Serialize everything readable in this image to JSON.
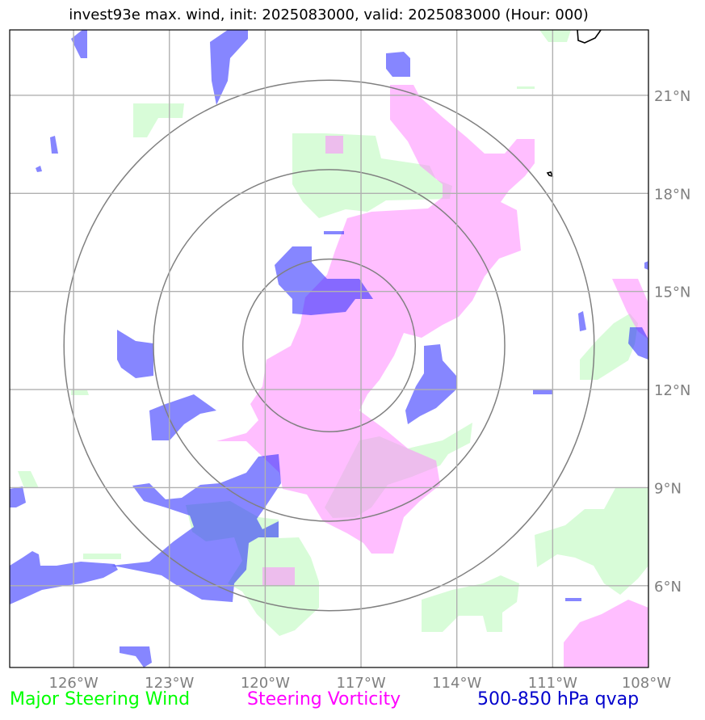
{
  "title": "invest93e max. wind, init: 2025083000, valid: 2025083000 (Hour: 000)",
  "map": {
    "lon_range": [
      -128,
      -108
    ],
    "lat_range": [
      3.5,
      23.0
    ],
    "center": {
      "lon": -118.0,
      "lat": 13.35
    },
    "range_rings_deg": [
      2.7,
      5.5,
      8.3
    ],
    "grid_lons": [
      -126,
      -123,
      -120,
      -117,
      -114,
      -111,
      -108
    ],
    "grid_lats": [
      6,
      9,
      12,
      15,
      18,
      21
    ],
    "lon_labels": [
      "126°W",
      "123°W",
      "120°W",
      "117°W",
      "114°W",
      "111°W",
      "108°W"
    ],
    "lat_labels": [
      "6°N",
      "9°N",
      "12°N",
      "15°N",
      "18°N",
      "21°N"
    ],
    "grid_color": "#b0b0b0",
    "ring_color": "#808080",
    "label_color": "#7f7f7f"
  },
  "layers": {
    "wind": {
      "color": "#c8fbc8",
      "opacity": 0.7
    },
    "vorticity": {
      "color": "#ff88ff",
      "opacity": 0.55
    },
    "qvap": {
      "color": "#2222ff",
      "opacity": 0.55
    }
  },
  "legend": [
    {
      "label": "Major Steering Wind",
      "color": "#00ff00"
    },
    {
      "label": "Steering Vorticity",
      "color": "#ff00ff"
    },
    {
      "label": "500-850 hPa qvap",
      "color": "#0000cc"
    }
  ]
}
